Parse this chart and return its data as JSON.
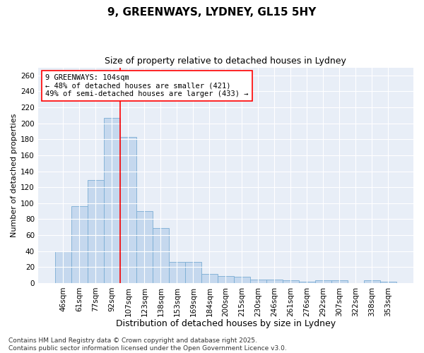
{
  "title1": "9, GREENWAYS, LYDNEY, GL15 5HY",
  "title2": "Size of property relative to detached houses in Lydney",
  "xlabel": "Distribution of detached houses by size in Lydney",
  "ylabel": "Number of detached properties",
  "categories": [
    "46sqm",
    "61sqm",
    "77sqm",
    "92sqm",
    "107sqm",
    "123sqm",
    "138sqm",
    "153sqm",
    "169sqm",
    "184sqm",
    "200sqm",
    "215sqm",
    "230sqm",
    "246sqm",
    "261sqm",
    "276sqm",
    "292sqm",
    "307sqm",
    "322sqm",
    "338sqm",
    "353sqm"
  ],
  "values": [
    40,
    96,
    129,
    207,
    183,
    90,
    69,
    26,
    26,
    11,
    9,
    8,
    4,
    4,
    3,
    2,
    3,
    3,
    0,
    3,
    2
  ],
  "bar_color": "#c5d8ee",
  "bar_edge_color": "#7aadd4",
  "vline_color": "red",
  "vline_x": 3.5,
  "annotation_line1": "9 GREENWAYS: 104sqm",
  "annotation_line2": "← 48% of detached houses are smaller (421)",
  "annotation_line3": "49% of semi-detached houses are larger (433) →",
  "annotation_box_facecolor": "white",
  "annotation_box_edgecolor": "red",
  "ylim": [
    0,
    270
  ],
  "yticks": [
    0,
    20,
    40,
    60,
    80,
    100,
    120,
    140,
    160,
    180,
    200,
    220,
    240,
    260
  ],
  "background_color": "#e8eef7",
  "footer_line1": "Contains HM Land Registry data © Crown copyright and database right 2025.",
  "footer_line2": "Contains public sector information licensed under the Open Government Licence v3.0.",
  "title1_fontsize": 11,
  "title2_fontsize": 9,
  "xlabel_fontsize": 9,
  "ylabel_fontsize": 8,
  "tick_fontsize": 7.5,
  "annotation_fontsize": 7.5,
  "footer_fontsize": 6.5
}
